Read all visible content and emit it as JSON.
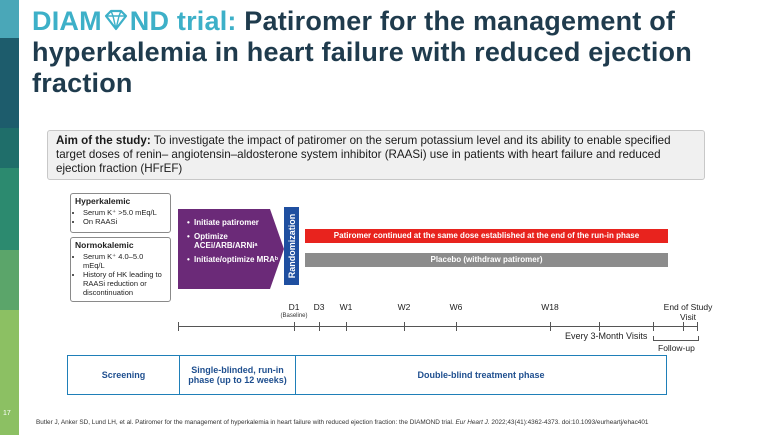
{
  "slide_number": "17",
  "title": {
    "part1": "DIAM",
    "part2": "ND trial:",
    "rest": " Patiromer for the management of hyperkalemia in heart failure with reduced ejection fraction"
  },
  "aim": {
    "label": "Aim of the study:",
    "text": " To investigate the impact of patiromer on the serum potassium level and its ability to enable specified target doses of renin– angiotensin–aldosterone system inhibitor (RAASi) use in patients with heart failure and reduced ejection fraction (HFrEF)"
  },
  "hyperkalemic": {
    "heading": "Hyperkalemic",
    "items": [
      "Serum K⁺ >5.0 mEq/L",
      "On RAASi"
    ]
  },
  "normokalemic": {
    "heading": "Normokalemic",
    "items": [
      "Serum K⁺ 4.0–5.0 mEq/L",
      "History of HK leading to RAASi reduction or discontinuation"
    ]
  },
  "runin": {
    "items": [
      "Initiate patiromer",
      "Optimize ACEi/ARB/ARNiᵃ",
      "Initiate/optimize MRAᵇ"
    ]
  },
  "randomization": "Randomization",
  "arms": {
    "patiromer": "Patiromer continued at the same dose established at the end of the run-in phase",
    "placebo": "Placebo (withdraw patiromer)"
  },
  "visits": {
    "d1": "D1",
    "baseline": "(Baseline)",
    "d3": "D3",
    "w1": "W1",
    "w2": "W2",
    "w6": "W6",
    "w18": "W18",
    "end": "End of Study Visit"
  },
  "every_visits": "Every 3-Month Visits",
  "followup": "Follow-up",
  "phases": {
    "screening": "Screening",
    "runin": "Single-blinded, run-in phase (up to 12 weeks)",
    "double_blind": "Double-blind treatment phase"
  },
  "reference": {
    "pre": "Butler J, Anker SD, Lund LH, et al. Patiromer for the management of hyperkalemia in heart failure with reduced ejection fraction: the DIAMOND trial. ",
    "journal": "Eur Heart J.",
    "post": " 2022;43(41):4362-4373. doi:10.1093/eurheartj/ehac401"
  },
  "colors": {
    "title_dark": "#1f3b4d",
    "title_accent": "#3db0c8",
    "runin_arrow": "#6b2a78",
    "randomization": "#1f4fa0",
    "patiromer_bar": "#e8231e",
    "placebo_bar": "#8c8c8c",
    "phase_border": "#1f7fb8"
  }
}
